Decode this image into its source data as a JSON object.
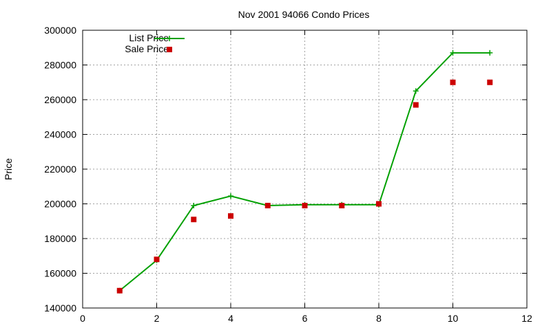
{
  "chart_data": {
    "type": "line",
    "title": "Nov 2001 94066 Condo Prices",
    "xlabel": "",
    "ylabel": "Price",
    "xlim": [
      0,
      12
    ],
    "ylim": [
      140000,
      300000
    ],
    "x_ticks": [
      0,
      2,
      4,
      6,
      8,
      10,
      12
    ],
    "x_tick_labels": [
      "0",
      "2",
      "4",
      "6",
      "8",
      "10",
      "12"
    ],
    "y_ticks": [
      140000,
      160000,
      180000,
      200000,
      220000,
      240000,
      260000,
      280000,
      300000
    ],
    "y_tick_labels": [
      "140000",
      "160000",
      "180000",
      "200000",
      "220000",
      "240000",
      "260000",
      "280000",
      "300000"
    ],
    "grid": true,
    "legend_position": "top-left",
    "series": [
      {
        "name": "List Price",
        "style": "line-with-plus-markers",
        "color": "#00a000",
        "x": [
          1,
          2,
          3,
          4,
          5,
          6,
          7,
          8,
          9,
          10,
          11
        ],
        "values": [
          150000,
          167500,
          199000,
          204500,
          199000,
          199500,
          199500,
          199500,
          265000,
          287000,
          287000
        ]
      },
      {
        "name": "Sale Price",
        "style": "square-markers",
        "color": "#cc0000",
        "x": [
          1,
          2,
          3,
          4,
          5,
          6,
          7,
          8,
          9,
          10,
          11
        ],
        "values": [
          150000,
          168000,
          191000,
          193000,
          199000,
          199000,
          199000,
          200000,
          257000,
          270000,
          270000
        ]
      }
    ]
  }
}
